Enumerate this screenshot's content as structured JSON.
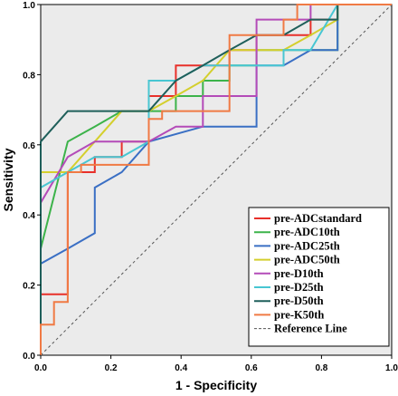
{
  "chart_data": {
    "type": "line",
    "title": "",
    "xlabel": "1 - Specificity",
    "ylabel": "Sensitivity",
    "xlim": [
      0,
      1
    ],
    "ylim": [
      0,
      1
    ],
    "xticks": [
      "0.0",
      "0.2",
      "0.4",
      "0.6",
      "0.8",
      "1.0"
    ],
    "yticks": [
      "0.0",
      "0.2",
      "0.4",
      "0.6",
      "0.8",
      "1.0"
    ],
    "grid": false,
    "legend_position": "bottom-right",
    "series": [
      {
        "name": "pre-ADCstandard",
        "color": "#e8302a",
        "points": [
          [
            0,
            0
          ],
          [
            0,
            0.174
          ],
          [
            0.077,
            0.174
          ],
          [
            0.077,
            0.522
          ],
          [
            0.154,
            0.522
          ],
          [
            0.154,
            0.565
          ],
          [
            0.231,
            0.565
          ],
          [
            0.231,
            0.609
          ],
          [
            0.308,
            0.609
          ],
          [
            0.308,
            0.739
          ],
          [
            0.385,
            0.739
          ],
          [
            0.385,
            0.826
          ],
          [
            0.462,
            0.826
          ],
          [
            0.462,
            0.826
          ],
          [
            0.538,
            0.826
          ],
          [
            0.538,
            0.87
          ],
          [
            0.615,
            0.87
          ],
          [
            0.615,
            0.913
          ],
          [
            0.769,
            0.913
          ],
          [
            0.769,
            0.957
          ],
          [
            0.846,
            0.957
          ],
          [
            0.846,
            1.0
          ],
          [
            0.923,
            1.0
          ],
          [
            0.923,
            1.0
          ],
          [
            1,
            1
          ]
        ]
      },
      {
        "name": "pre-ADC10th",
        "color": "#3cb34a",
        "points": [
          [
            0,
            0
          ],
          [
            0,
            0.304
          ],
          [
            0.077,
            0.609
          ],
          [
            0.154,
            0.652
          ],
          [
            0.231,
            0.696
          ],
          [
            0.308,
            0.696
          ],
          [
            0.385,
            0.696
          ],
          [
            0.385,
            0.739
          ],
          [
            0.462,
            0.739
          ],
          [
            0.462,
            0.783
          ],
          [
            0.538,
            0.783
          ],
          [
            0.538,
            0.826
          ],
          [
            0.615,
            0.826
          ],
          [
            0.615,
            0.87
          ],
          [
            0.769,
            0.87
          ],
          [
            0.769,
            0.87
          ],
          [
            0.846,
            0.87
          ],
          [
            0.846,
            1.0
          ],
          [
            1,
            1
          ]
        ]
      },
      {
        "name": "pre-ADC25th",
        "color": "#3a6fc4",
        "points": [
          [
            0,
            0
          ],
          [
            0,
            0.261
          ],
          [
            0.077,
            0.304
          ],
          [
            0.077,
            0.304
          ],
          [
            0.154,
            0.348
          ],
          [
            0.154,
            0.478
          ],
          [
            0.231,
            0.522
          ],
          [
            0.231,
            0.522
          ],
          [
            0.308,
            0.609
          ],
          [
            0.462,
            0.652
          ],
          [
            0.538,
            0.652
          ],
          [
            0.615,
            0.652
          ],
          [
            0.615,
            0.826
          ],
          [
            0.692,
            0.826
          ],
          [
            0.769,
            0.87
          ],
          [
            0.846,
            0.87
          ],
          [
            0.846,
            1.0
          ],
          [
            1,
            1
          ]
        ]
      },
      {
        "name": "pre-ADC50th",
        "color": "#d4cf2d",
        "points": [
          [
            0,
            0
          ],
          [
            0,
            0.522
          ],
          [
            0.077,
            0.522
          ],
          [
            0.154,
            0.609
          ],
          [
            0.231,
            0.696
          ],
          [
            0.308,
            0.696
          ],
          [
            0.385,
            0.739
          ],
          [
            0.462,
            0.783
          ],
          [
            0.538,
            0.87
          ],
          [
            0.615,
            0.87
          ],
          [
            0.692,
            0.87
          ],
          [
            0.769,
            0.913
          ],
          [
            0.846,
            0.957
          ],
          [
            0.846,
            1.0
          ],
          [
            1,
            1
          ]
        ]
      },
      {
        "name": "pre-D10th",
        "color": "#b44bb8",
        "points": [
          [
            0,
            0
          ],
          [
            0,
            0.435
          ],
          [
            0.077,
            0.565
          ],
          [
            0.077,
            0.565
          ],
          [
            0.154,
            0.609
          ],
          [
            0.231,
            0.609
          ],
          [
            0.231,
            0.609
          ],
          [
            0.308,
            0.609
          ],
          [
            0.385,
            0.652
          ],
          [
            0.462,
            0.652
          ],
          [
            0.462,
            0.739
          ],
          [
            0.538,
            0.739
          ],
          [
            0.538,
            0.739
          ],
          [
            0.615,
            0.739
          ],
          [
            0.615,
            0.957
          ],
          [
            0.692,
            0.957
          ],
          [
            0.769,
            0.957
          ],
          [
            0.769,
            1.0
          ],
          [
            1,
            1
          ]
        ]
      },
      {
        "name": "pre-D25th",
        "color": "#48c6d2",
        "points": [
          [
            0,
            0
          ],
          [
            0,
            0.478
          ],
          [
            0.077,
            0.522
          ],
          [
            0.154,
            0.565
          ],
          [
            0.231,
            0.565
          ],
          [
            0.308,
            0.609
          ],
          [
            0.308,
            0.783
          ],
          [
            0.385,
            0.783
          ],
          [
            0.462,
            0.826
          ],
          [
            0.538,
            0.826
          ],
          [
            0.538,
            0.826
          ],
          [
            0.615,
            0.826
          ],
          [
            0.615,
            0.826
          ],
          [
            0.692,
            0.826
          ],
          [
            0.692,
            0.87
          ],
          [
            0.692,
            0.87
          ],
          [
            0.769,
            0.87
          ],
          [
            0.769,
            0.87
          ],
          [
            0.769,
            0.87
          ],
          [
            0.769,
            0.87
          ],
          [
            0.846,
            1.0
          ],
          [
            1,
            1
          ]
        ]
      },
      {
        "name": "pre-D50th",
        "color": "#1f5f5a",
        "points": [
          [
            0,
            0
          ],
          [
            0,
            0.609
          ],
          [
            0.077,
            0.696
          ],
          [
            0.154,
            0.696
          ],
          [
            0.231,
            0.696
          ],
          [
            0.308,
            0.696
          ],
          [
            0.385,
            0.783
          ],
          [
            0.462,
            0.826
          ],
          [
            0.538,
            0.87
          ],
          [
            0.615,
            0.913
          ],
          [
            0.692,
            0.913
          ],
          [
            0.769,
            0.957
          ],
          [
            0.846,
            0.957
          ],
          [
            0.846,
            1.0
          ],
          [
            1,
            1
          ]
        ]
      },
      {
        "name": "pre-K50th",
        "color": "#f07a44",
        "points": [
          [
            0,
            0
          ],
          [
            0,
            0.087
          ],
          [
            0.038,
            0.087
          ],
          [
            0.038,
            0.152
          ],
          [
            0.077,
            0.152
          ],
          [
            0.077,
            0.522
          ],
          [
            0.115,
            0.522
          ],
          [
            0.115,
            0.543
          ],
          [
            0.308,
            0.543
          ],
          [
            0.308,
            0.674
          ],
          [
            0.346,
            0.674
          ],
          [
            0.346,
            0.696
          ],
          [
            0.538,
            0.696
          ],
          [
            0.538,
            0.913
          ],
          [
            0.615,
            0.913
          ],
          [
            0.615,
            0.913
          ],
          [
            0.692,
            0.913
          ],
          [
            0.692,
            0.957
          ],
          [
            0.731,
            0.957
          ],
          [
            0.731,
            1.0
          ],
          [
            1,
            1
          ]
        ]
      }
    ],
    "reference_line": {
      "name": "Reference Line",
      "color": "#555555",
      "points": [
        [
          0,
          0
        ],
        [
          1,
          1
        ]
      ]
    }
  }
}
